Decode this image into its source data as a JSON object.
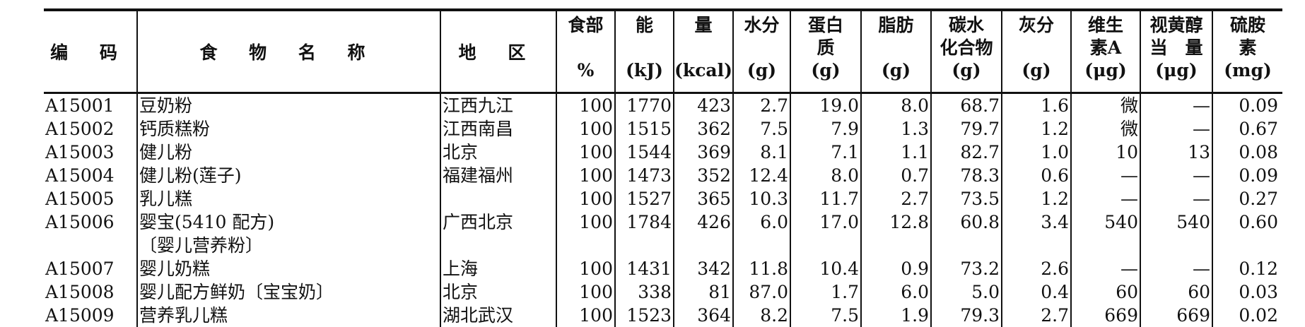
{
  "headers": [
    {
      "lines": [
        "编 码"
      ],
      "mid": true
    },
    {
      "lines": [
        "食 物 名 称"
      ],
      "mid": true
    },
    {
      "lines": [
        "地 区"
      ],
      "mid": true
    },
    {
      "lines": [
        "食部",
        "",
        "%"
      ]
    },
    {
      "lines": [
        "能",
        "",
        "(kJ)"
      ]
    },
    {
      "lines": [
        "量",
        "",
        "(kcal)"
      ]
    },
    {
      "lines": [
        "水分",
        "",
        "(g)"
      ]
    },
    {
      "lines": [
        "蛋白",
        "质",
        "(g)"
      ]
    },
    {
      "lines": [
        "脂肪",
        "",
        "(g)"
      ]
    },
    {
      "lines": [
        "碳水",
        "化合物",
        "(g)"
      ]
    },
    {
      "lines": [
        "灰分",
        "",
        "(g)"
      ]
    },
    {
      "lines": [
        "维生",
        "素A",
        "(μg)"
      ]
    },
    {
      "lines": [
        "视黄醇",
        "当　量",
        "(μg)"
      ]
    },
    {
      "lines": [
        "硫胺",
        "素",
        "(mg)"
      ]
    }
  ],
  "rows": [
    [
      "A15001",
      "豆奶粉",
      "江西九江",
      "100",
      "1770",
      "423",
      "2.7",
      "19.0",
      "8.0",
      "68.7",
      "1.6",
      "微",
      "—",
      "0.09"
    ],
    [
      "A15002",
      "钙质糕粉",
      "江西南昌",
      "100",
      "1515",
      "362",
      "7.5",
      "7.9",
      "1.3",
      "79.7",
      "1.2",
      "微",
      "—",
      "0.67"
    ],
    [
      "A15003",
      "健儿粉",
      "北京",
      "100",
      "1544",
      "369",
      "8.1",
      "7.1",
      "1.1",
      "82.7",
      "1.0",
      "10",
      "13",
      "0.08"
    ],
    [
      "A15004",
      "健儿粉(莲子)",
      "福建福州",
      "100",
      "1473",
      "352",
      "12.4",
      "8.0",
      "0.7",
      "78.3",
      "0.6",
      "—",
      "—",
      "0.09"
    ],
    [
      "A15005",
      "乳儿糕",
      "",
      "100",
      "1527",
      "365",
      "10.3",
      "11.7",
      "2.7",
      "73.5",
      "1.2",
      "—",
      "—",
      "0.27"
    ],
    [
      "A15006",
      "婴宝(5410 配方)",
      "广西北京",
      "100",
      "1784",
      "426",
      "6.0",
      "17.0",
      "12.8",
      "60.8",
      "3.4",
      "540",
      "540",
      "0.60"
    ],
    [
      "",
      "〔婴儿营养粉〕",
      "",
      "",
      "",
      "",
      "",
      "",
      "",
      "",
      "",
      "",
      "",
      ""
    ],
    [
      "A15007",
      "婴儿奶糕",
      "上海",
      "100",
      "1431",
      "342",
      "11.8",
      "10.4",
      "0.9",
      "73.2",
      "2.6",
      "—",
      "—",
      "0.12"
    ],
    [
      "A15008",
      "婴儿配方鲜奶〔宝宝奶〕",
      "北京",
      "100",
      "338",
      "81",
      "87.0",
      "1.7",
      "6.0",
      "5.0",
      "0.4",
      "60",
      "60",
      "0.03"
    ],
    [
      "A15009",
      "营养乳儿糕",
      "湖北武汉",
      "100",
      "1523",
      "364",
      "8.2",
      "7.5",
      "1.9",
      "79.3",
      "2.7",
      "669",
      "669",
      "0.02"
    ]
  ]
}
